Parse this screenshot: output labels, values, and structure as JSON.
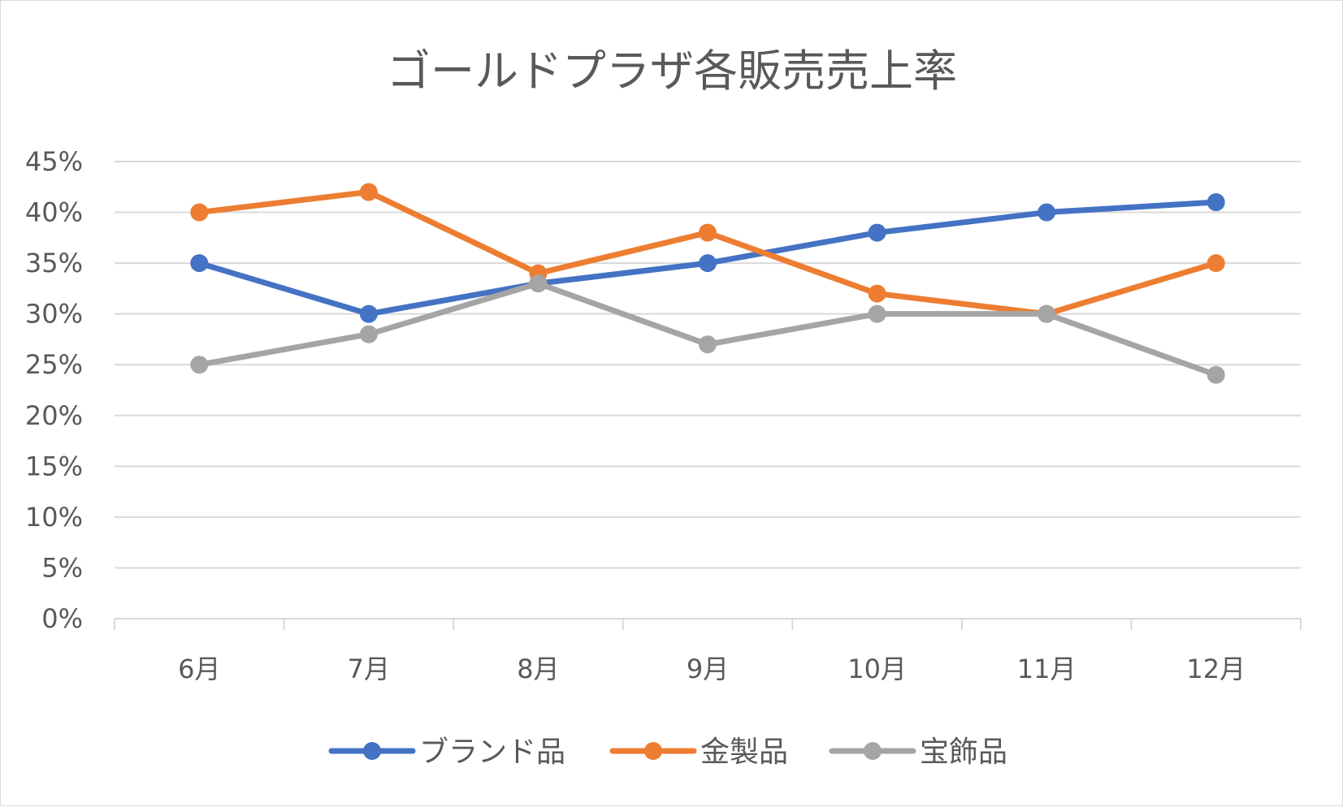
{
  "chart_data": {
    "type": "line",
    "title": "ゴールドプラザ各販売売上率",
    "xlabel": "",
    "ylabel": "",
    "categories": [
      "6月",
      "7月",
      "8月",
      "9月",
      "10月",
      "11月",
      "12月"
    ],
    "ylim": [
      0,
      45
    ],
    "ytick_step": 5,
    "ytick_labels": [
      "0%",
      "5%",
      "10%",
      "15%",
      "20%",
      "25%",
      "30%",
      "35%",
      "40%",
      "45%"
    ],
    "grid": true,
    "legend_position": "bottom",
    "series": [
      {
        "name": "ブランド品",
        "color": "#4472C4",
        "values": [
          35,
          30,
          33,
          35,
          38,
          40,
          41
        ]
      },
      {
        "name": "金製品",
        "color": "#ED7D31",
        "values": [
          40,
          42,
          34,
          38,
          32,
          30,
          35
        ]
      },
      {
        "name": "宝飾品",
        "color": "#A5A5A5",
        "values": [
          25,
          28,
          33,
          27,
          30,
          30,
          24
        ]
      }
    ]
  }
}
